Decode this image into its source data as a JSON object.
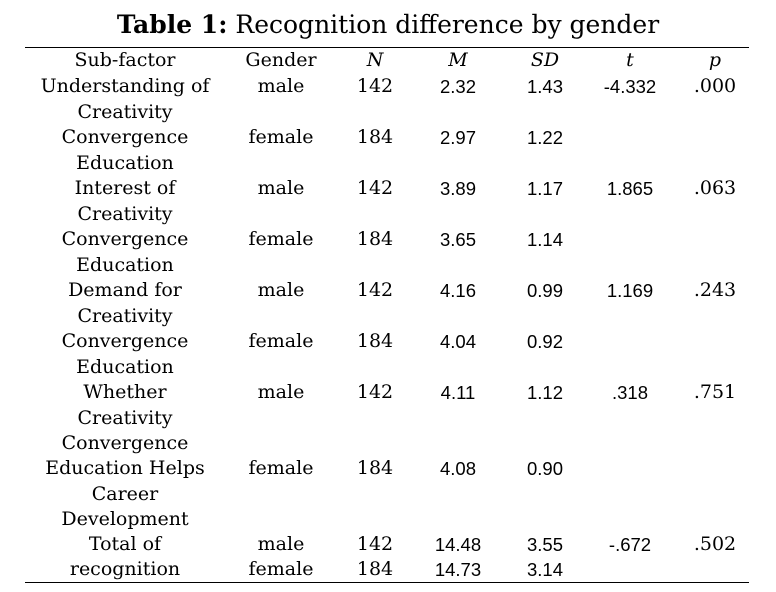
{
  "caption": {
    "label": "Table 1:",
    "title": "Recognition difference by gender"
  },
  "columns": {
    "subfactor": "Sub-factor",
    "gender": "Gender",
    "n": "N",
    "m": "M",
    "sd": "SD",
    "t": "t",
    "p": "p"
  },
  "rows": [
    {
      "subfactor_lines": [
        "Understanding of",
        "Creativity"
      ],
      "gender": "male",
      "n": "142",
      "m": "2.32",
      "sd": "1.43",
      "t": "-4.332",
      "p": ".000"
    },
    {
      "subfactor_lines": [
        "Convergence",
        "Education"
      ],
      "gender": "female",
      "n": "184",
      "m": "2.97",
      "sd": "1.22",
      "t": "",
      "p": ""
    },
    {
      "subfactor_lines": [
        "Interest of",
        "Creativity"
      ],
      "gender": "male",
      "n": "142",
      "m": "3.89",
      "sd": "1.17",
      "t": "1.865",
      "p": ".063"
    },
    {
      "subfactor_lines": [
        "Convergence",
        "Education"
      ],
      "gender": "female",
      "n": "184",
      "m": "3.65",
      "sd": "1.14",
      "t": "",
      "p": ""
    },
    {
      "subfactor_lines": [
        "Demand for",
        "Creativity"
      ],
      "gender": "male",
      "n": "142",
      "m": "4.16",
      "sd": "0.99",
      "t": "1.169",
      "p": ".243"
    },
    {
      "subfactor_lines": [
        "Convergence",
        "Education"
      ],
      "gender": "female",
      "n": "184",
      "m": "4.04",
      "sd": "0.92",
      "t": "",
      "p": ""
    },
    {
      "subfactor_lines": [
        "Whether",
        "Creativity",
        "Convergence"
      ],
      "gender": "male",
      "n": "142",
      "m": "4.11",
      "sd": "1.12",
      "t": ".318",
      "p": ".751"
    },
    {
      "subfactor_lines": [
        "Education Helps",
        "Career",
        "Development"
      ],
      "gender": "female",
      "n": "184",
      "m": "4.08",
      "sd": "0.90",
      "t": "",
      "p": ""
    },
    {
      "subfactor_lines": [
        "Total of"
      ],
      "gender": "male",
      "n": "142",
      "m": "14.48",
      "sd": "3.55",
      "t": "-.672",
      "p": ".502"
    },
    {
      "subfactor_lines": [
        "recognition"
      ],
      "gender": "female",
      "n": "184",
      "m": "14.73",
      "sd": "3.14",
      "t": "",
      "p": ""
    }
  ]
}
